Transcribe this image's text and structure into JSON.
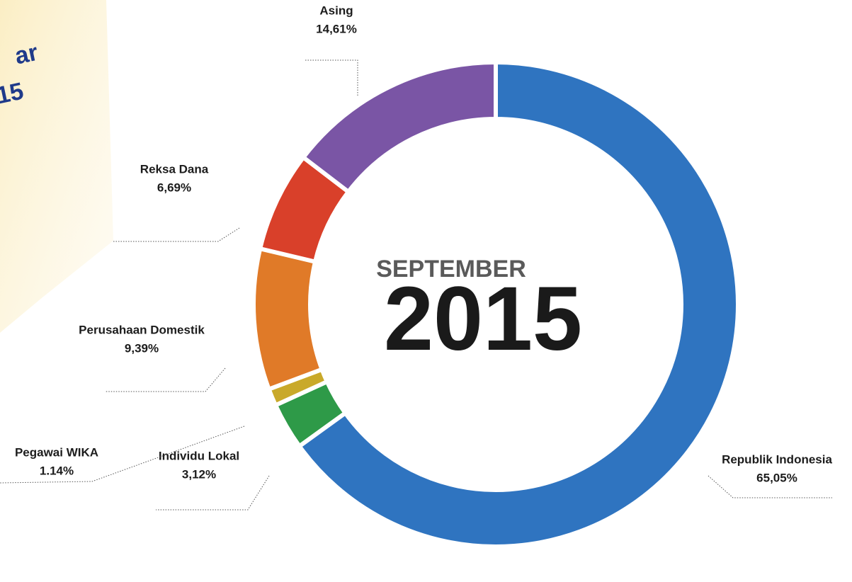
{
  "chart_data": {
    "type": "pie",
    "center_title": "SEPTEMBER",
    "center_year": "2015",
    "corner_note": [
      "ar",
      "15"
    ],
    "categories": [
      "Republik Indonesia",
      "Individu Lokal",
      "Pegawai WIKA",
      "Perusahaan Domestik",
      "Reksa Dana",
      "Asing"
    ],
    "values": [
      65.05,
      3.12,
      1.14,
      9.39,
      6.69,
      14.61
    ],
    "value_labels": [
      "65,05%",
      "3,12%",
      "1.14%",
      "9,39%",
      "6,69%",
      "14,61%"
    ],
    "colors": [
      "#2f74c0",
      "#2e9a48",
      "#c9a92a",
      "#e07a28",
      "#d9402a",
      "#7a55a5"
    ],
    "donut": true
  }
}
